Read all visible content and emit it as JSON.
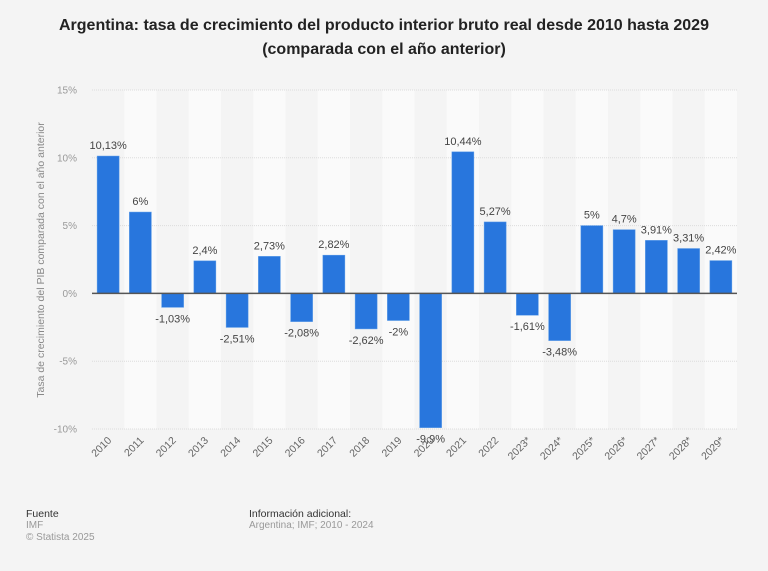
{
  "chart_data": {
    "type": "bar",
    "title": "Argentina: tasa de crecimiento del producto interior bruto real desde 2010 hasta 2029",
    "subtitle": "(comparada con el año anterior)",
    "xlabel": "",
    "ylabel": "Tasa de crecimiento del PIB comparada con el año anterior",
    "ylim": [
      -10,
      15
    ],
    "yticks": [
      15,
      10,
      5,
      0,
      -5,
      -10
    ],
    "ytick_labels": [
      "15%",
      "10%",
      "5%",
      "0%",
      "-5%",
      "-10%"
    ],
    "grid": true,
    "bar_color": "#2876dd",
    "categories": [
      "2010",
      "2011",
      "2012",
      "2013",
      "2014",
      "2015",
      "2016",
      "2017",
      "2018",
      "2019",
      "2020",
      "2021",
      "2022",
      "2023*",
      "2024*",
      "2025*",
      "2026*",
      "2027*",
      "2028*",
      "2029*"
    ],
    "values": [
      10.13,
      6,
      -1.03,
      2.4,
      -2.51,
      2.73,
      -2.08,
      2.82,
      -2.62,
      -2,
      -9.9,
      10.44,
      5.27,
      -1.61,
      -3.48,
      5,
      4.7,
      3.91,
      3.31,
      2.42
    ],
    "data_labels": [
      "10,13%",
      "6%",
      "-1,03%",
      "2,4%",
      "-2,51%",
      "2,73%",
      "-2,08%",
      "2,82%",
      "-2,62%",
      "-2%",
      "-9,9%",
      "10,44%",
      "5,27%",
      "-1,61%",
      "-3,48%",
      "5%",
      "4,7%",
      "3,91%",
      "3,31%",
      "2,42%"
    ]
  },
  "footer": {
    "source_heading": "Fuente",
    "source_name": "IMF",
    "copyright": "© Statista 2025",
    "info_heading": "Información adicional:",
    "info_text": "Argentina; IMF; 2010 - 2024"
  }
}
